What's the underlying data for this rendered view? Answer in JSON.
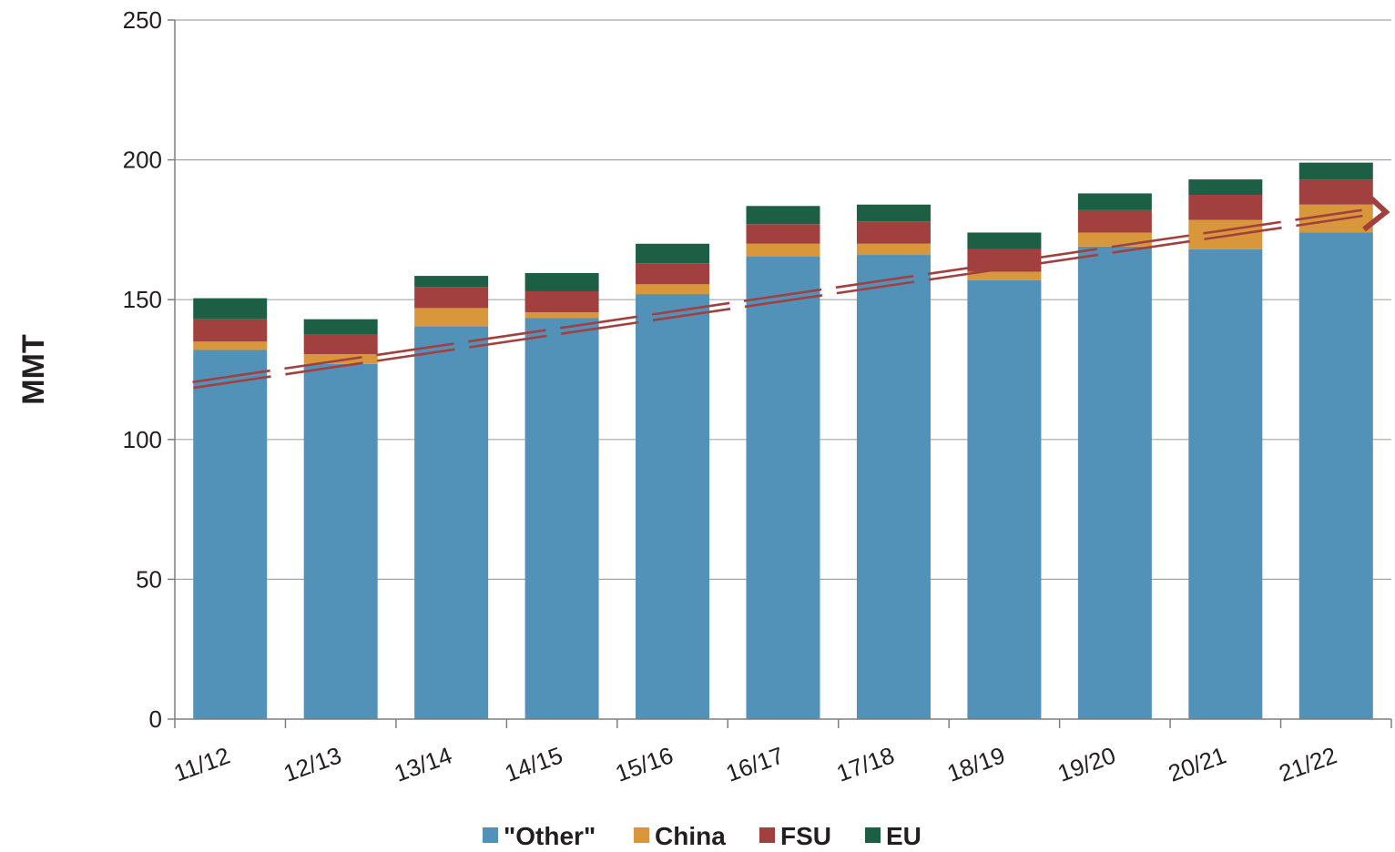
{
  "chart_data": {
    "type": "bar",
    "stacked": true,
    "ylabel": "MMT",
    "xlabel": "",
    "ylim": [
      0,
      250
    ],
    "yticks": [
      0,
      50,
      100,
      150,
      200,
      250
    ],
    "grid": true,
    "legend_position": "bottom",
    "categories": [
      "11/12",
      "12/13",
      "13/14",
      "14/15",
      "15/16",
      "16/17",
      "17/18",
      "18/19",
      "19/20",
      "20/21",
      "21/22"
    ],
    "series": [
      {
        "name": "\"Other\"",
        "color": "#5292b9",
        "values": [
          132,
          127,
          140.5,
          143.5,
          152,
          165.5,
          166,
          157,
          169,
          168,
          174
        ]
      },
      {
        "name": "China",
        "color": "#d9973b",
        "values": [
          3,
          3.5,
          6.5,
          2,
          3.5,
          4.5,
          4,
          3,
          5,
          10.5,
          10
        ]
      },
      {
        "name": "FSU",
        "color": "#a2403f",
        "values": [
          8,
          7,
          7.5,
          7.5,
          7.5,
          7,
          8,
          8,
          8,
          9,
          9
        ]
      },
      {
        "name": "EU",
        "color": "#1d5f44",
        "values": [
          7.5,
          5.5,
          4,
          6.5,
          7,
          6.5,
          6,
          6,
          6,
          5.5,
          6
        ]
      }
    ],
    "trend": {
      "style": "dashed double line",
      "color": "#a2403f",
      "start_value": 119.5,
      "end_value": 181,
      "arrow": true
    }
  }
}
